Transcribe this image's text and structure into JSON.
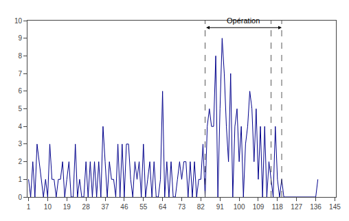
{
  "chart_data": {
    "type": "line",
    "x": [
      1,
      2,
      3,
      4,
      5,
      6,
      7,
      8,
      9,
      10,
      11,
      12,
      13,
      14,
      15,
      16,
      17,
      18,
      19,
      20,
      21,
      22,
      23,
      24,
      25,
      26,
      27,
      28,
      29,
      30,
      31,
      32,
      33,
      34,
      35,
      36,
      37,
      38,
      39,
      40,
      41,
      42,
      43,
      44,
      45,
      46,
      47,
      48,
      49,
      50,
      51,
      52,
      53,
      54,
      55,
      56,
      57,
      58,
      59,
      60,
      61,
      62,
      63,
      64,
      65,
      66,
      67,
      68,
      69,
      70,
      71,
      72,
      73,
      74,
      75,
      76,
      77,
      78,
      79,
      80,
      81,
      82,
      83,
      84,
      85,
      86,
      87,
      88,
      89,
      90,
      91,
      92,
      93,
      94,
      95,
      96,
      97,
      98,
      99,
      100,
      101,
      102,
      103,
      104,
      105,
      106,
      107,
      108,
      109,
      110,
      111,
      112,
      113,
      114,
      115,
      116,
      117,
      118,
      119,
      120,
      121,
      122,
      123,
      124,
      125,
      126,
      127,
      128,
      129,
      130,
      131,
      132,
      133,
      134,
      135,
      136,
      137
    ],
    "values": [
      1,
      0,
      2,
      0,
      3,
      2,
      1,
      0,
      1,
      0,
      3,
      1,
      1,
      0,
      1,
      1,
      2,
      0,
      1,
      2,
      0,
      0,
      3,
      0,
      1,
      0,
      0,
      2,
      0,
      2,
      0,
      2,
      0,
      2,
      0,
      4,
      2,
      0,
      2,
      1,
      1,
      0,
      3,
      0,
      3,
      0,
      3,
      3,
      1,
      0,
      2,
      1,
      2,
      0,
      3,
      0,
      1,
      2,
      0,
      2,
      0,
      0,
      1,
      6,
      0,
      2,
      0,
      2,
      0,
      0,
      1,
      2,
      1,
      2,
      2,
      0,
      2,
      0,
      2,
      0,
      1,
      1,
      3,
      0,
      4,
      5,
      4,
      4,
      8,
      0,
      5,
      9,
      7,
      4,
      2,
      7,
      0,
      4,
      5,
      2,
      4,
      0,
      3,
      4,
      6,
      5,
      2,
      5,
      1,
      4,
      0,
      4,
      0,
      2,
      1,
      0,
      4,
      1,
      0,
      1,
      0,
      0,
      0,
      0,
      0,
      0,
      0,
      0,
      0,
      0,
      0,
      0,
      0,
      0,
      0,
      0,
      1
    ],
    "color": "#00008B",
    "xlim": [
      0.5,
      145.5
    ],
    "xticks": [
      1,
      10,
      19,
      28,
      37,
      46,
      55,
      64,
      73,
      82,
      91,
      100,
      109,
      118,
      127,
      136,
      145
    ],
    "ylim": [
      0,
      10
    ],
    "yticks": [
      0,
      1,
      2,
      3,
      4,
      5,
      6,
      7,
      8,
      9,
      10
    ],
    "grid": false,
    "vlines": {
      "x": [
        84,
        115,
        120
      ],
      "color": "#555555",
      "line_style": "dashed"
    },
    "annotations": [
      {
        "text": "Opération",
        "x_start": 84,
        "x_end": 120,
        "y": 9.6
      }
    ]
  }
}
